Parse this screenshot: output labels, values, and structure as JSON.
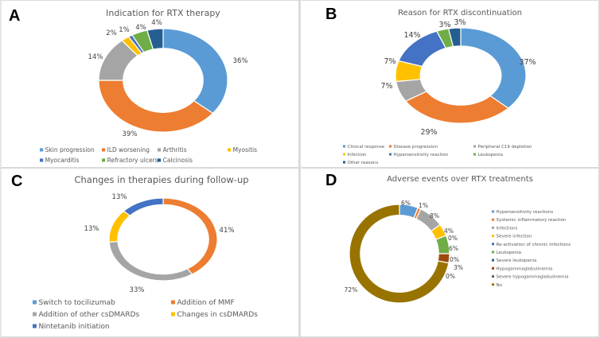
{
  "chart_data": [
    {
      "panel": "A",
      "type": "pie",
      "variant": "donut",
      "title": "Indication for RTX therapy",
      "categories": [
        "Skin progression",
        "ILD worsening",
        "Arthritis",
        "Myositis",
        "Myocarditis",
        "Refractory ulcers",
        "Calcinosis"
      ],
      "values": [
        36,
        39,
        14,
        2,
        1,
        4,
        4
      ],
      "labels": [
        "36%",
        "39%",
        "14%",
        "2%",
        "1%",
        "4%",
        "4%"
      ],
      "colors": [
        "#5b9bd5",
        "#ed7d31",
        "#a5a5a5",
        "#ffc000",
        "#4472c4",
        "#70ad47",
        "#255e91"
      ],
      "legend": "bottom"
    },
    {
      "panel": "B",
      "type": "pie",
      "variant": "donut",
      "title": "Reason for RTX discontinuation",
      "categories": [
        "Clinical response",
        "Disease progression",
        "Peripheral C19 depletion",
        "Infection",
        "Hypersensitivity reaction",
        "Leukopenia",
        "Other reasons"
      ],
      "values": [
        37,
        29,
        7,
        7,
        14,
        3,
        3
      ],
      "labels": [
        "37%",
        "29%",
        "7%",
        "7%",
        "14%",
        "3%",
        "3%"
      ],
      "colors": [
        "#5b9bd5",
        "#ed7d31",
        "#a5a5a5",
        "#ffc000",
        "#4472c4",
        "#70ad47",
        "#255e91"
      ],
      "legend": "bottom"
    },
    {
      "panel": "C",
      "type": "pie",
      "variant": "donut",
      "title": "Changes in therapies during follow-up",
      "categories": [
        "Switch to tocilizumab",
        "Addition of MMF",
        "Addition of other csDMARDs",
        "Changes in csDMARDs",
        "Nintetanib initiation"
      ],
      "values": [
        0,
        41,
        33,
        13,
        13
      ],
      "labels": [
        "",
        "41%",
        "33%",
        "13%",
        "13%"
      ],
      "colors": [
        "#5b9bd5",
        "#ed7d31",
        "#a5a5a5",
        "#ffc000",
        "#4472c4"
      ],
      "legend": "bottom"
    },
    {
      "panel": "D",
      "type": "pie",
      "variant": "donut",
      "title": "Adverse events over RTX treatments",
      "categories": [
        "Hypersensitivity reactions",
        "Systemic inflammatory reaction",
        "Infections",
        "Severe infection",
        "Re-activation of chronic infections",
        "Leukopenia",
        "Severe leukopenia",
        "Hypogammaglobulinemia",
        "Severe hypogammaglobulinemia",
        "No"
      ],
      "values": [
        6,
        1,
        8,
        4,
        0,
        6,
        0,
        3,
        0,
        72
      ],
      "labels": [
        "6%",
        "1%",
        "8%",
        "4%",
        "0%",
        "6%",
        "0%",
        "3%",
        "0%",
        "72%"
      ],
      "colors": [
        "#5b9bd5",
        "#ed7d31",
        "#a5a5a5",
        "#ffc000",
        "#4472c4",
        "#70ad47",
        "#255e91",
        "#9e480e",
        "#636363",
        "#997300"
      ],
      "legend": "right"
    }
  ]
}
